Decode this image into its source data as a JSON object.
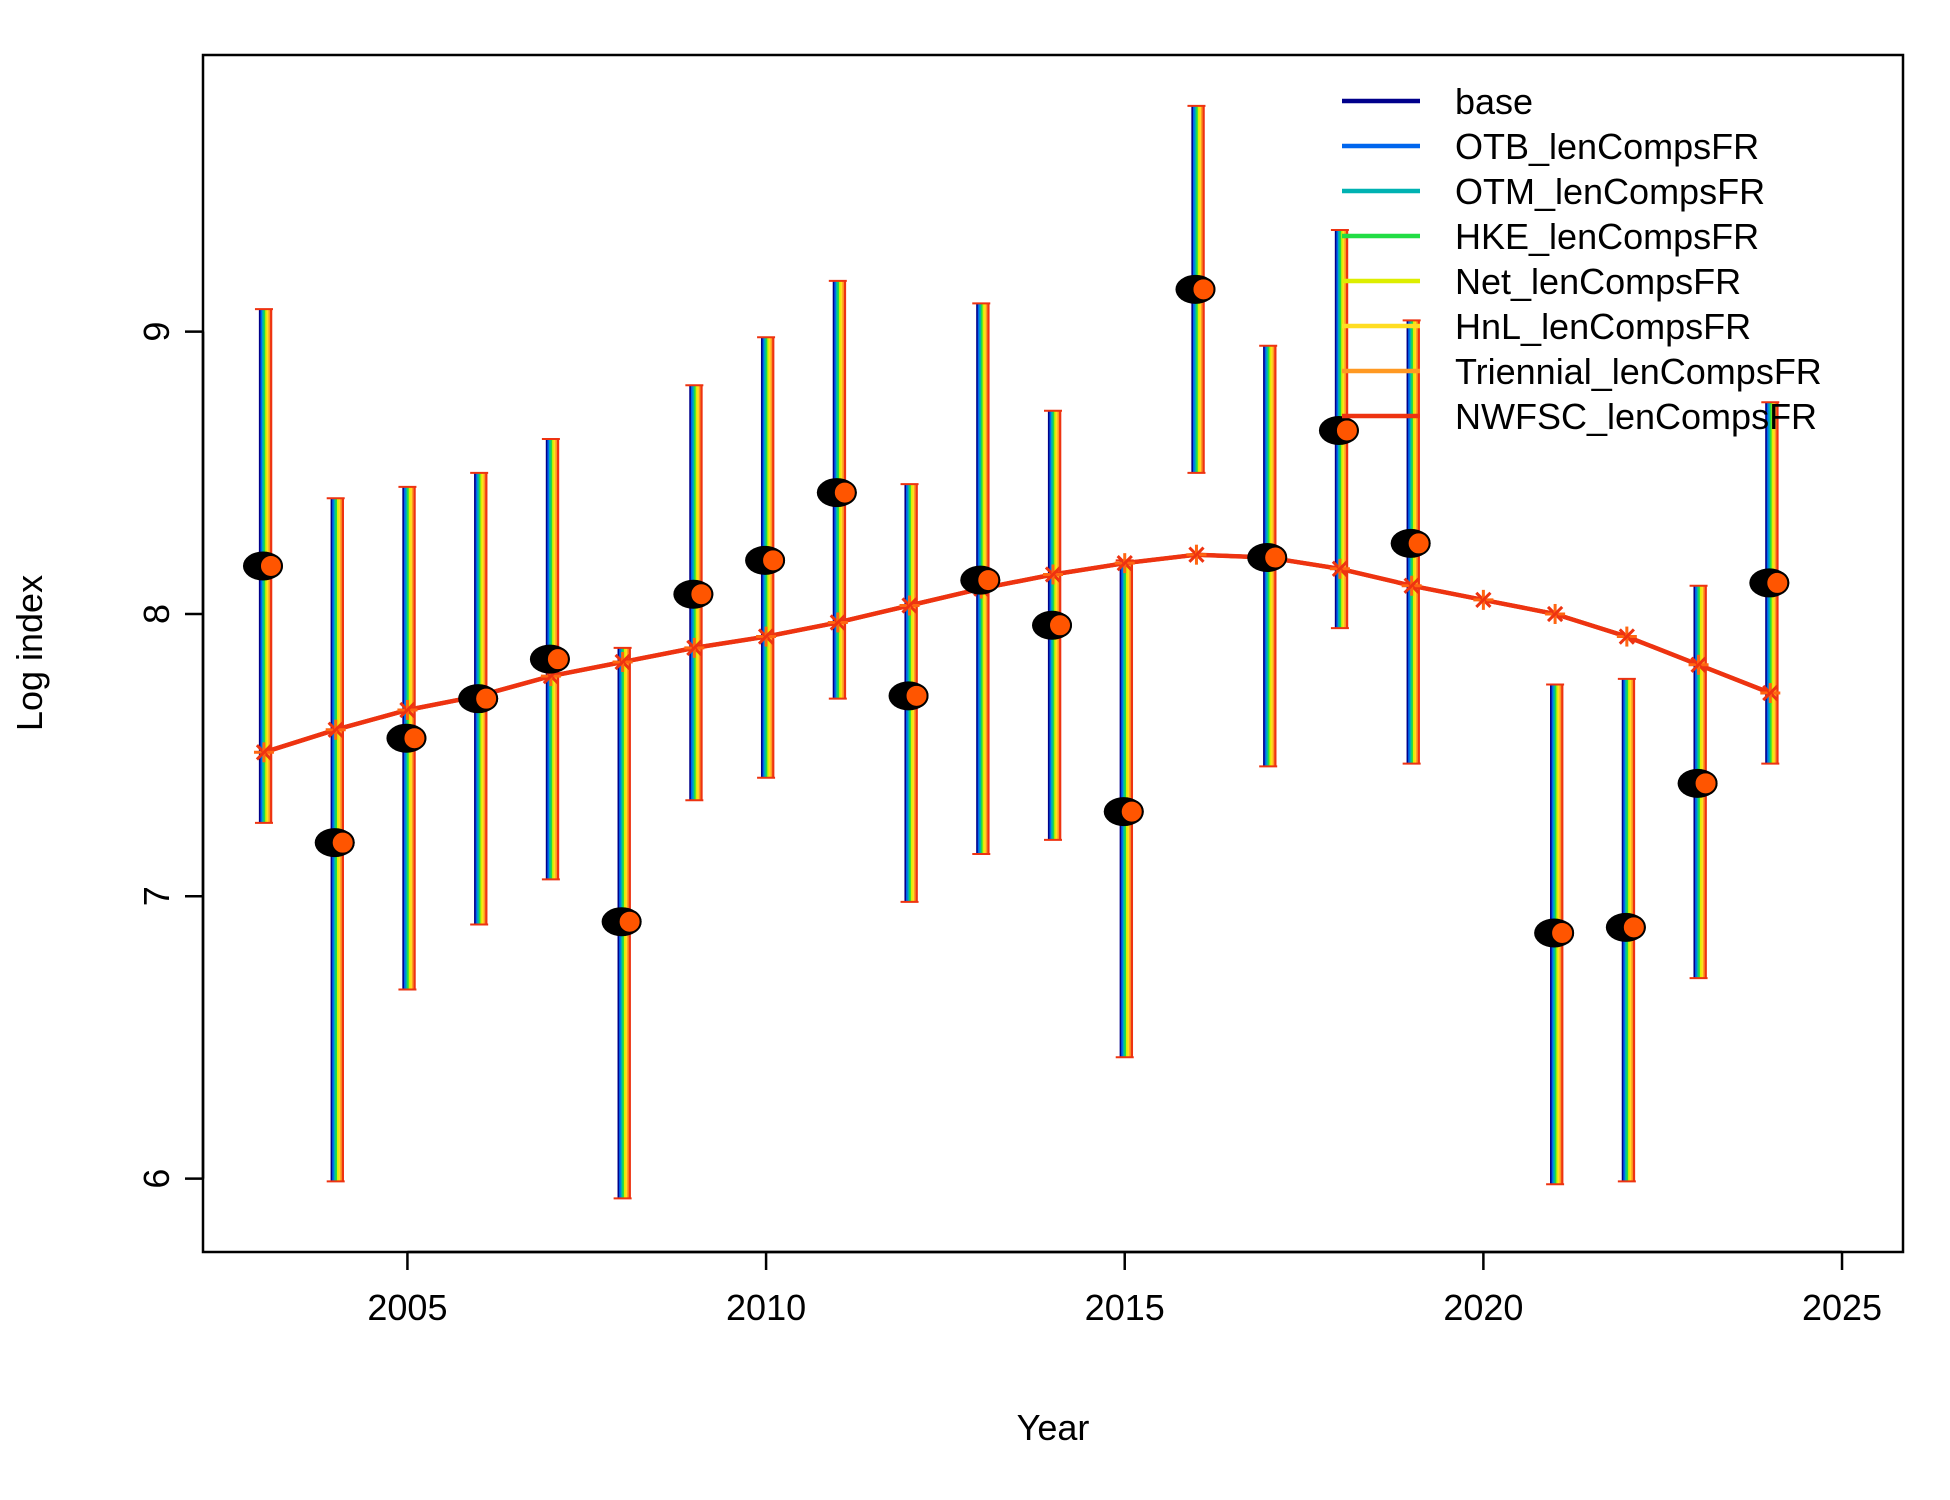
{
  "chart_data": {
    "type": "line",
    "title": "",
    "xlabel": "Year",
    "ylabel": "Log index",
    "xlim": [
      2002.15,
      2025.85
    ],
    "ylim": [
      5.74,
      9.98
    ],
    "x_ticks": [
      2005,
      2010,
      2015,
      2020,
      2025
    ],
    "y_ticks": [
      6,
      7,
      8,
      9
    ],
    "grid": false,
    "legend_position": "top-right",
    "legend": [
      {
        "name": "base",
        "color": "#00008B"
      },
      {
        "name": "OTB_lenCompsFR",
        "color": "#0066EE"
      },
      {
        "name": "OTM_lenCompsFR",
        "color": "#00B2B2"
      },
      {
        "name": "HKE_lenCompsFR",
        "color": "#22DD44"
      },
      {
        "name": "Net_lenCompsFR",
        "color": "#DDEE00"
      },
      {
        "name": "HnL_lenCompsFR",
        "color": "#FFDD22"
      },
      {
        "name": "Triennial_lenCompsFR",
        "color": "#FF9922"
      },
      {
        "name": "NWFSC_lenCompsFR",
        "color": "#EE3311"
      }
    ],
    "observed": {
      "x": [
        2003,
        2004,
        2005,
        2006,
        2007,
        2008,
        2009,
        2010,
        2011,
        2012,
        2013,
        2014,
        2015,
        2016,
        2017,
        2018,
        2019,
        2021,
        2022,
        2023,
        2024
      ],
      "y": [
        8.17,
        7.19,
        7.56,
        7.7,
        7.84,
        6.91,
        8.07,
        8.19,
        8.43,
        7.71,
        8.12,
        7.96,
        7.3,
        9.15,
        8.2,
        8.65,
        8.25,
        6.87,
        6.89,
        7.4,
        8.11
      ],
      "lower": [
        7.26,
        5.99,
        6.67,
        6.9,
        7.06,
        5.93,
        7.34,
        7.42,
        7.7,
        6.98,
        7.15,
        7.2,
        6.43,
        8.5,
        7.46,
        7.95,
        7.47,
        5.98,
        5.99,
        6.71,
        7.47
      ],
      "upper": [
        9.08,
        8.41,
        8.45,
        8.5,
        8.62,
        7.88,
        8.81,
        8.98,
        9.18,
        8.46,
        9.1,
        8.72,
        8.19,
        9.8,
        8.95,
        9.36,
        9.04,
        7.75,
        7.77,
        8.1,
        8.75
      ]
    },
    "fitted": {
      "x": [
        2003,
        2004,
        2005,
        2006,
        2007,
        2008,
        2009,
        2010,
        2011,
        2012,
        2013,
        2014,
        2015,
        2016,
        2017,
        2018,
        2019,
        2020,
        2021,
        2022,
        2023,
        2024
      ],
      "y": [
        7.51,
        7.59,
        7.66,
        7.71,
        7.78,
        7.83,
        7.88,
        7.92,
        7.97,
        8.03,
        8.09,
        8.14,
        8.18,
        8.21,
        8.2,
        8.16,
        8.1,
        8.05,
        8.0,
        7.92,
        7.82,
        7.72
      ]
    }
  }
}
